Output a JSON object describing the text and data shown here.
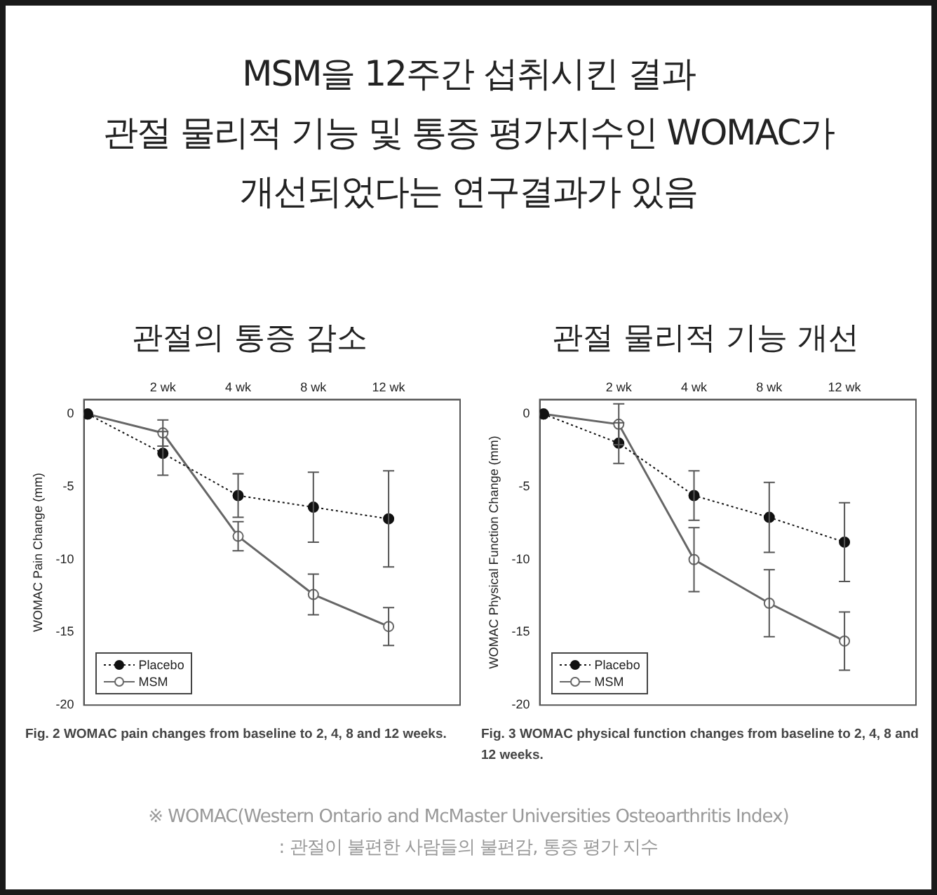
{
  "chart_data": [
    {
      "type": "other",
      "title": "MSM을 12주간 섭취시킨 결과\n관절 물리적 기능 및 통증 평가지수인 WOMAC가\n개선되었다는 연구결과가 있음",
      "annotations": [
        "※ WOMAC(Western Ontario and McMaster Universities Osteoarthritis Index)\n: 관절이 불편한 사람들의 불편감, 통증 평가 지수"
      ]
    },
    {
      "type": "line",
      "title": "관절의 통증 감소",
      "ylabel": "WOMAC Pain Change (mm)",
      "categories": [
        null,
        "2 wk",
        "4 wk",
        "8 wk",
        "12 wk"
      ],
      "ylim": [
        -20,
        1
      ],
      "yticks": [
        0,
        -5,
        -10,
        -15,
        -20
      ],
      "grid": false,
      "legend": "bottom left",
      "marker": "circle",
      "annotations": [
        "Fig. 2 WOMAC pain changes from baseline to 2, 4, 8 and 12 weeks."
      ],
      "series": [
        {
          "name": "Placebo",
          "color": "#111111",
          "line_style": "dotted",
          "values": [
            0,
            -2.7,
            -5.6,
            -6.4,
            -7.2
          ],
          "errors": [
            null,
            1.5,
            1.5,
            2.4,
            3.3
          ]
        },
        {
          "name": "MSM",
          "color": "#666666",
          "line_style": "solid",
          "values": [
            0,
            -1.3,
            -8.4,
            -12.4,
            -14.6
          ],
          "errors": [
            null,
            0.9,
            1.0,
            1.4,
            1.3
          ]
        }
      ]
    },
    {
      "type": "line",
      "title": "관절 물리적 기능 개선",
      "ylabel": "WOMAC Physical Function Change (mm)",
      "categories": [
        null,
        "2 wk",
        "4 wk",
        "8 wk",
        "12 wk"
      ],
      "ylim": [
        -20,
        1
      ],
      "yticks": [
        0,
        -5,
        -10,
        -15,
        -20
      ],
      "grid": false,
      "legend": "bottom left",
      "marker": "circle",
      "annotations": [
        "Fig. 3 WOMAC physical function changes from baseline to 2, 4, 8 and 12 weeks."
      ],
      "series": [
        {
          "name": "Placebo",
          "color": "#111111",
          "line_style": "dotted",
          "values": [
            0,
            -2.0,
            -5.6,
            -7.1,
            -8.8
          ],
          "errors": [
            null,
            1.4,
            1.7,
            2.4,
            2.7
          ]
        },
        {
          "name": "MSM",
          "color": "#666666",
          "line_style": "solid",
          "values": [
            0,
            -0.7,
            -10.0,
            -13.0,
            -15.6
          ],
          "errors": [
            null,
            1.4,
            2.2,
            2.3,
            2.0
          ]
        }
      ]
    }
  ]
}
